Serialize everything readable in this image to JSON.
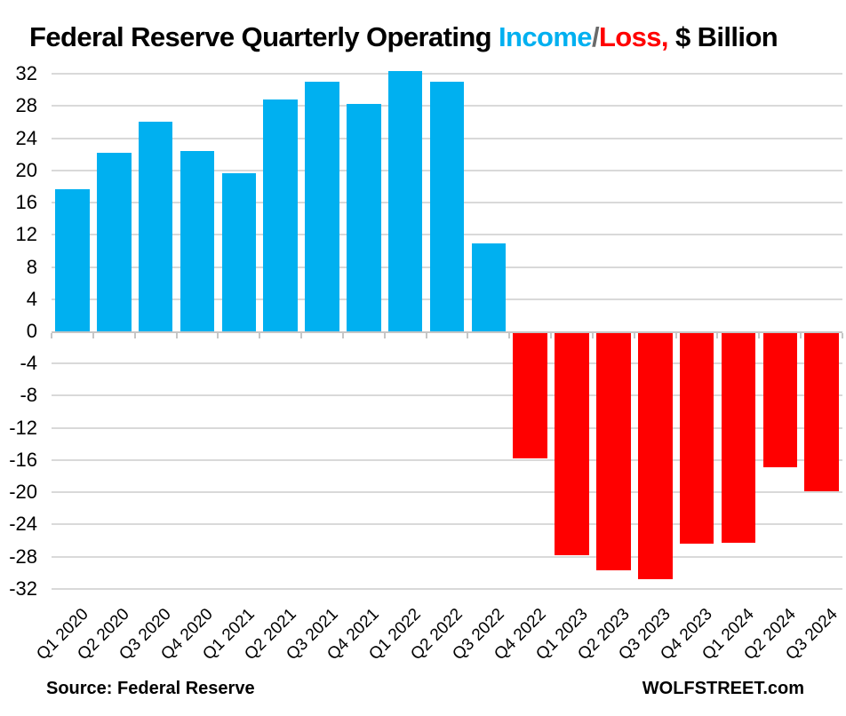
{
  "title": {
    "segments": [
      {
        "text": "Federal Reserve Quarterly Operating ",
        "color": "#000000"
      },
      {
        "text": "Income",
        "color": "#00b0f0"
      },
      {
        "text": "/",
        "color": "#6a6a6a"
      },
      {
        "text": "Loss,",
        "color": "#ff0000"
      },
      {
        "text": " $ Billion",
        "color": "#000000"
      }
    ]
  },
  "chart_data": {
    "type": "bar",
    "title": "Federal Reserve Quarterly Operating Income/Loss, $ Billion",
    "categories": [
      "Q1 2020",
      "Q2 2020",
      "Q3 2020",
      "Q4 2020",
      "Q1 2021",
      "Q2 2021",
      "Q3 2021",
      "Q4 2021",
      "Q1 2022",
      "Q2 2022",
      "Q3 2022",
      "Q4 2022",
      "Q1 2023",
      "Q2 2023",
      "Q3 2023",
      "Q4 2023",
      "Q1 2024",
      "Q2 2024",
      "Q3 2024"
    ],
    "values": [
      17.7,
      22.2,
      26.1,
      22.4,
      19.6,
      28.8,
      31.0,
      28.3,
      32.3,
      31.0,
      10.9,
      -15.8,
      -27.8,
      -29.7,
      -30.8,
      -26.4,
      -26.3,
      -16.9,
      -19.9
    ],
    "xlabel": "",
    "ylabel": "",
    "ylim": [
      -32,
      32
    ],
    "ytick_step": 4,
    "grid": true,
    "legend_position": "none",
    "positive_color": "#00b0f0",
    "negative_color": "#ff0000",
    "gridline_color": "#d9d9d9",
    "axis_line_color": "#c6c6c6"
  },
  "footer": {
    "source": "Source: Federal Reserve",
    "brand": "WOLFSTREET.com"
  }
}
